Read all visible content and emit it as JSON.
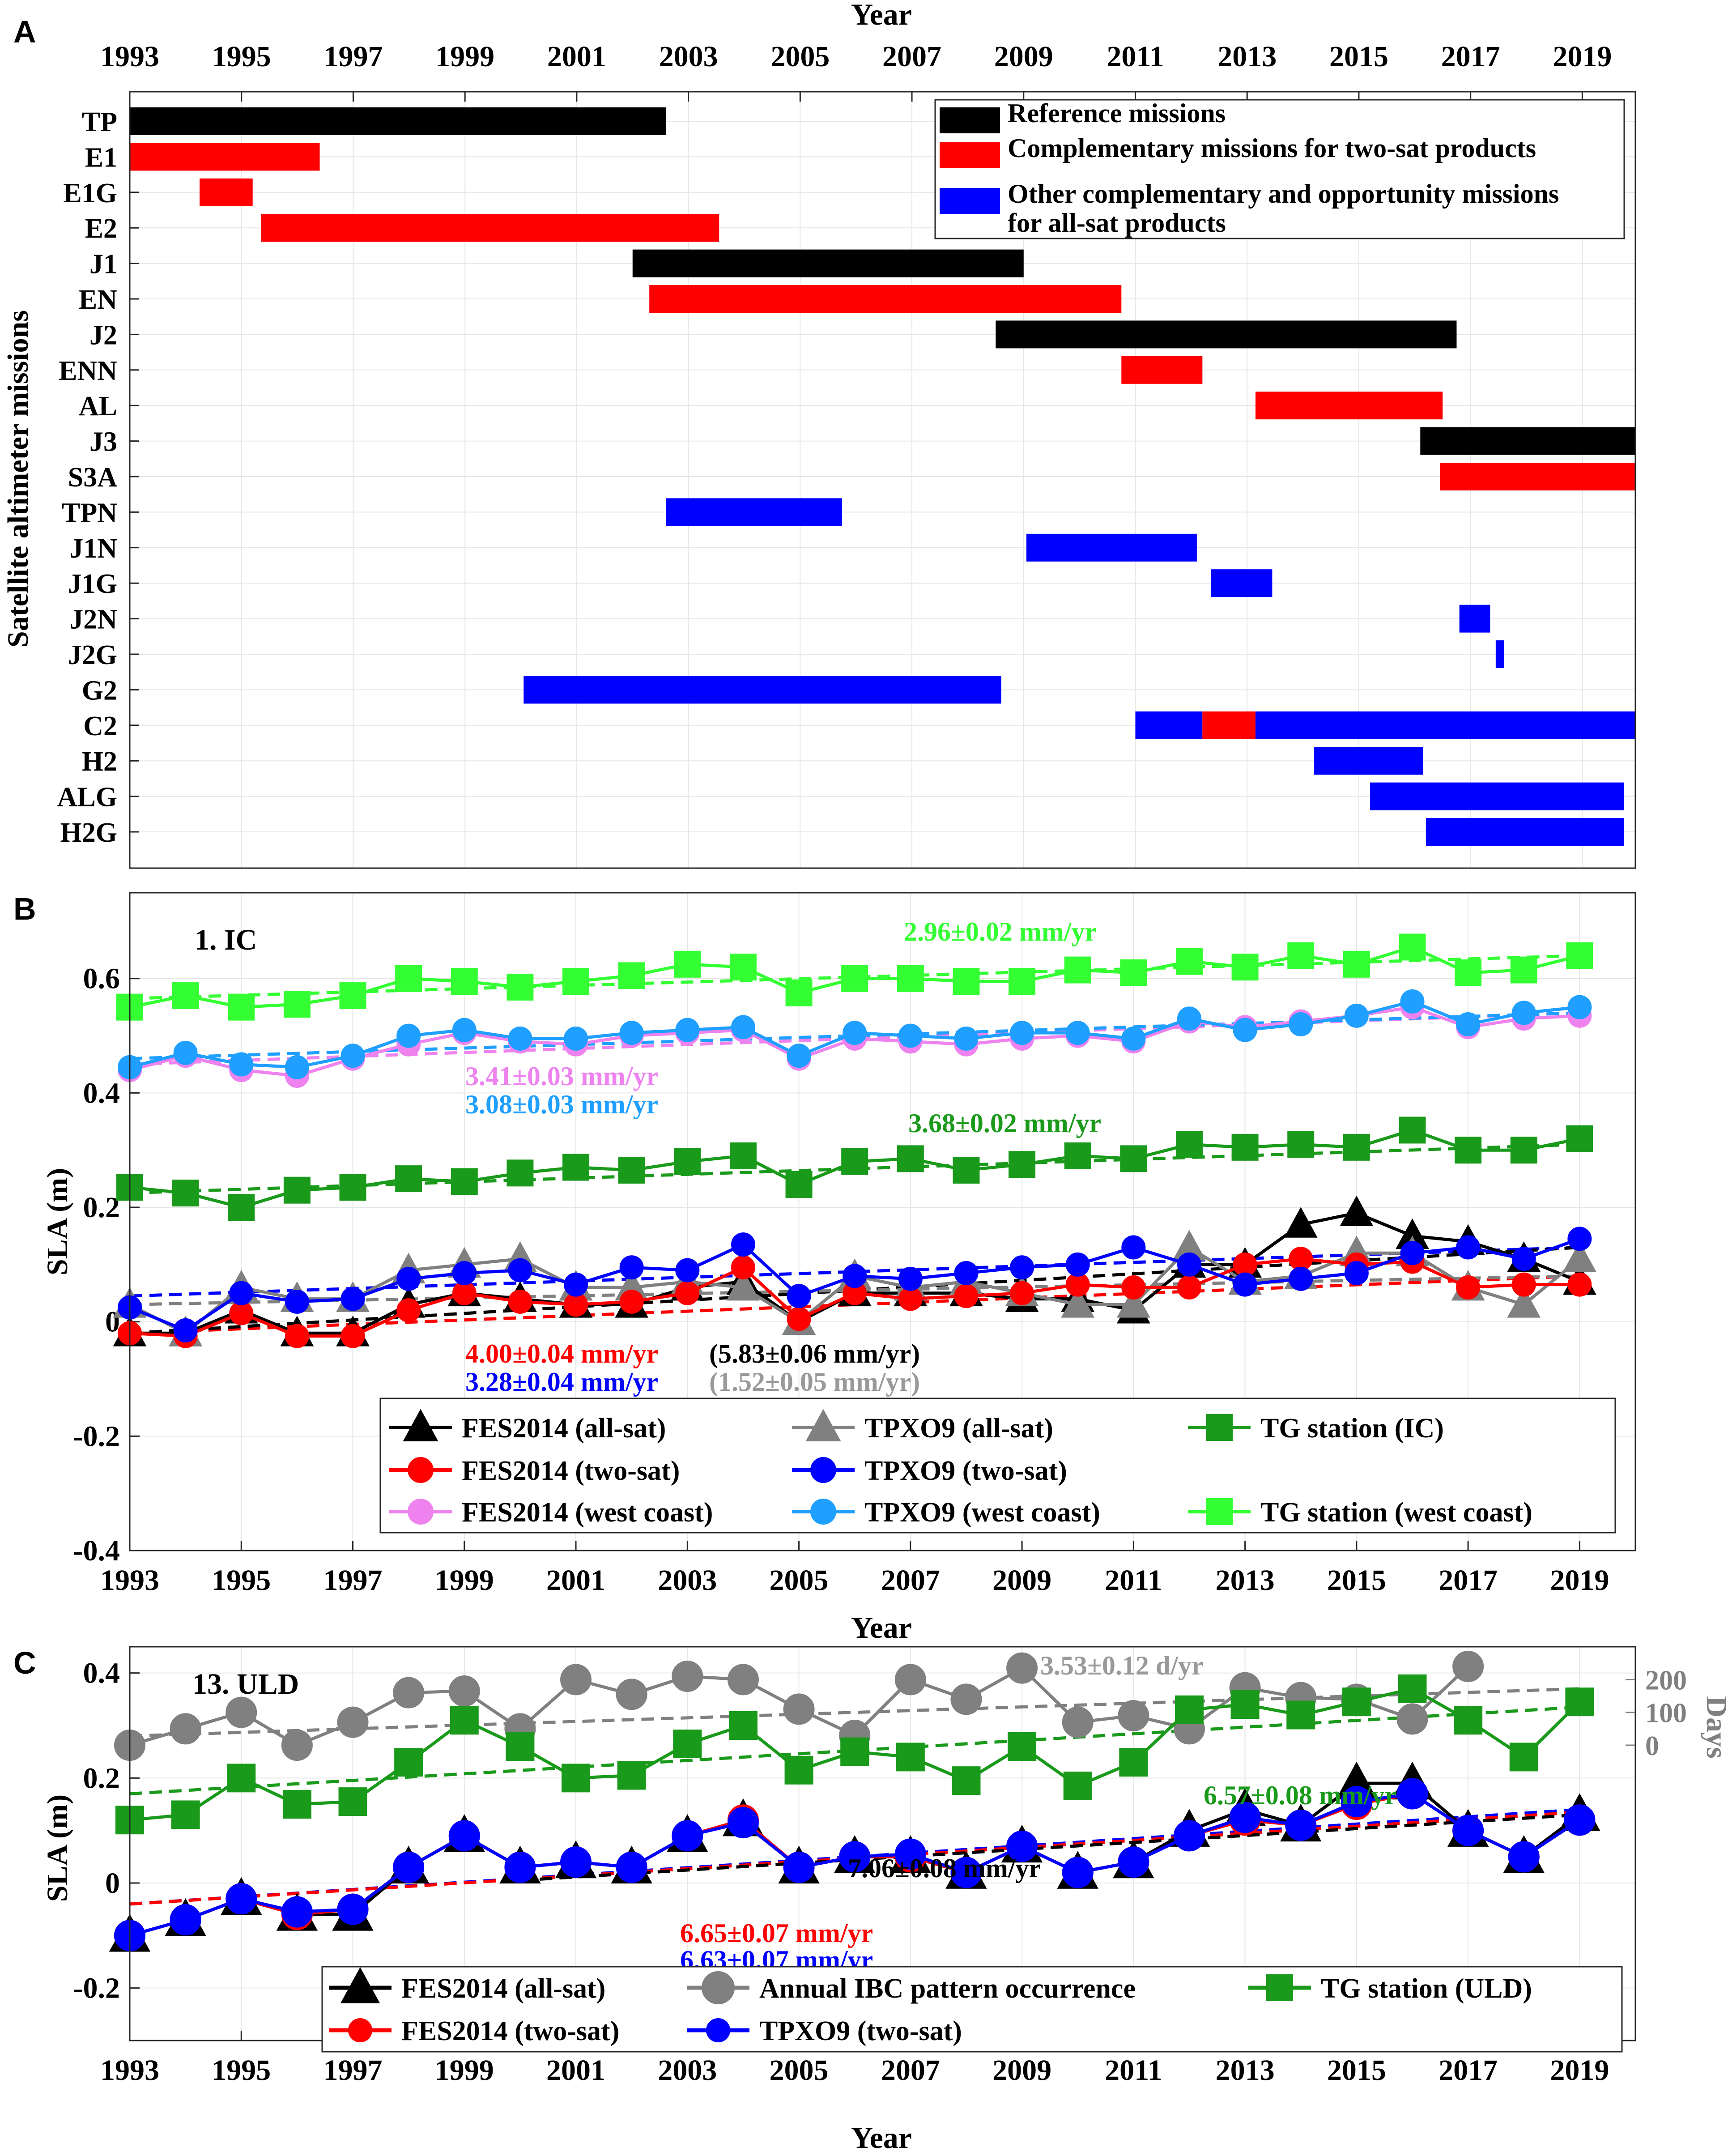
{
  "chart_data": [
    {
      "panel_label": "A",
      "type": "gantt",
      "xlabel": "Year",
      "ylabel": "Satellite altimeter missions",
      "xlim": [
        1993,
        2019.95
      ],
      "xticks": [
        "1993",
        "1995",
        "1997",
        "1999",
        "2001",
        "2003",
        "2005",
        "2007",
        "2009",
        "2011",
        "2013",
        "2015",
        "2017",
        "2019"
      ],
      "missions": [
        {
          "name": "TP",
          "segments": [
            {
              "start": 1993.0,
              "end": 2002.6,
              "cat": "ref"
            }
          ]
        },
        {
          "name": "E1",
          "segments": [
            {
              "start": 1993.0,
              "end": 1996.4,
              "cat": "comp"
            }
          ]
        },
        {
          "name": "E1G",
          "segments": [
            {
              "start": 1994.25,
              "end": 1995.2,
              "cat": "comp"
            }
          ]
        },
        {
          "name": "E2",
          "segments": [
            {
              "start": 1995.35,
              "end": 2003.55,
              "cat": "comp"
            }
          ]
        },
        {
          "name": "J1",
          "segments": [
            {
              "start": 2002.0,
              "end": 2009.0,
              "cat": "ref"
            }
          ]
        },
        {
          "name": "EN",
          "segments": [
            {
              "start": 2002.3,
              "end": 2010.75,
              "cat": "comp"
            }
          ]
        },
        {
          "name": "J2",
          "segments": [
            {
              "start": 2008.5,
              "end": 2016.75,
              "cat": "ref"
            }
          ]
        },
        {
          "name": "ENN",
          "segments": [
            {
              "start": 2010.75,
              "end": 2012.2,
              "cat": "comp"
            }
          ]
        },
        {
          "name": "AL",
          "segments": [
            {
              "start": 2013.15,
              "end": 2016.5,
              "cat": "comp"
            }
          ]
        },
        {
          "name": "J3",
          "segments": [
            {
              "start": 2016.1,
              "end": 2019.95,
              "cat": "ref"
            }
          ]
        },
        {
          "name": "S3A",
          "segments": [
            {
              "start": 2016.45,
              "end": 2019.95,
              "cat": "comp"
            }
          ]
        },
        {
          "name": "TPN",
          "segments": [
            {
              "start": 2002.6,
              "end": 2005.75,
              "cat": "other"
            }
          ]
        },
        {
          "name": "J1N",
          "segments": [
            {
              "start": 2009.05,
              "end": 2012.1,
              "cat": "other"
            }
          ]
        },
        {
          "name": "J1G",
          "segments": [
            {
              "start": 2012.35,
              "end": 2013.45,
              "cat": "other"
            }
          ]
        },
        {
          "name": "J2N",
          "segments": [
            {
              "start": 2016.8,
              "end": 2017.35,
              "cat": "other"
            }
          ]
        },
        {
          "name": "J2G",
          "segments": [
            {
              "start": 2017.45,
              "end": 2017.6,
              "cat": "other"
            }
          ]
        },
        {
          "name": "G2",
          "segments": [
            {
              "start": 2000.05,
              "end": 2008.6,
              "cat": "other"
            }
          ]
        },
        {
          "name": "C2",
          "segments": [
            {
              "start": 2011.0,
              "end": 2012.2,
              "cat": "other"
            },
            {
              "start": 2012.2,
              "end": 2013.15,
              "cat": "comp"
            },
            {
              "start": 2013.15,
              "end": 2019.95,
              "cat": "other"
            }
          ]
        },
        {
          "name": "H2",
          "segments": [
            {
              "start": 2014.2,
              "end": 2016.15,
              "cat": "other"
            }
          ]
        },
        {
          "name": "ALG",
          "segments": [
            {
              "start": 2015.2,
              "end": 2019.75,
              "cat": "other"
            }
          ]
        },
        {
          "name": "H2G",
          "segments": [
            {
              "start": 2016.2,
              "end": 2019.75,
              "cat": "other"
            }
          ]
        }
      ],
      "legend": [
        {
          "cat": "ref",
          "label": "Reference missions",
          "color": "#000000"
        },
        {
          "cat": "comp",
          "label": "Complementary missions for two-sat products",
          "color": "#ff0000"
        },
        {
          "cat": "other",
          "label": "Other complementary and opportunity missions",
          "label2": "for all-sat products",
          "color": "#0000ff"
        }
      ]
    },
    {
      "panel_label": "B",
      "type": "line",
      "title": "1. IC",
      "ylabel": "SLA (m)",
      "xlabel": "Year",
      "xlim": [
        1993,
        2020
      ],
      "ylim": [
        -0.4,
        0.75
      ],
      "yticks": [
        "0.6",
        "0.4",
        "0.2",
        "0",
        "-0.2",
        "-0.4"
      ],
      "xticks": [
        "1993",
        "1995",
        "1997",
        "1999",
        "2001",
        "2003",
        "2005",
        "2007",
        "2009",
        "2011",
        "2013",
        "2015",
        "2017",
        "2019"
      ],
      "x": [
        1993,
        1994,
        1995,
        1996,
        1997,
        1998,
        1999,
        2000,
        2001,
        2002,
        2003,
        2004,
        2005,
        2006,
        2007,
        2008,
        2009,
        2010,
        2011,
        2012,
        2013,
        2014,
        2015,
        2016,
        2017,
        2018,
        2019
      ],
      "series": [
        {
          "name": "FES2014 (all-sat)",
          "color": "#000000",
          "marker": "triangle",
          "values": [
            -0.02,
            -0.02,
            0.02,
            -0.02,
            -0.02,
            0.03,
            0.05,
            0.04,
            0.03,
            0.03,
            0.06,
            0.07,
            0.0,
            0.05,
            0.05,
            0.05,
            0.04,
            0.04,
            0.02,
            0.1,
            0.1,
            0.17,
            0.19,
            0.15,
            0.14,
            0.11,
            0.07
          ]
        },
        {
          "name": "TPXO9 (all-sat)",
          "color": "#808080",
          "marker": "triangle",
          "values": [
            0.03,
            -0.02,
            0.06,
            0.04,
            0.04,
            0.09,
            0.1,
            0.11,
            0.06,
            0.06,
            0.07,
            0.06,
            0.0,
            0.08,
            0.06,
            0.07,
            0.05,
            0.03,
            0.03,
            0.13,
            0.07,
            0.08,
            0.12,
            0.12,
            0.06,
            0.03,
            0.11
          ]
        },
        {
          "name": "TG station (IC)",
          "color": "#1a9a1a",
          "marker": "square",
          "values": [
            0.235,
            0.225,
            0.2,
            0.23,
            0.235,
            0.25,
            0.245,
            0.26,
            0.27,
            0.265,
            0.28,
            0.29,
            0.24,
            0.28,
            0.285,
            0.265,
            0.275,
            0.29,
            0.285,
            0.31,
            0.305,
            0.31,
            0.305,
            0.335,
            0.3,
            0.3,
            0.32
          ]
        },
        {
          "name": "FES2014 (two-sat)",
          "color": "#ff0000",
          "marker": "circle",
          "values": [
            -0.02,
            -0.025,
            0.015,
            -0.025,
            -0.025,
            0.02,
            0.05,
            0.035,
            0.03,
            0.035,
            0.05,
            0.095,
            0.005,
            0.05,
            0.04,
            0.045,
            0.05,
            0.065,
            0.06,
            0.06,
            0.1,
            0.11,
            0.1,
            0.105,
            0.06,
            0.065,
            0.065
          ]
        },
        {
          "name": "TPXO9 (two-sat)",
          "color": "#0000ff",
          "marker": "circle",
          "values": [
            0.025,
            -0.015,
            0.05,
            0.035,
            0.04,
            0.075,
            0.085,
            0.09,
            0.065,
            0.095,
            0.09,
            0.135,
            0.045,
            0.08,
            0.075,
            0.085,
            0.095,
            0.1,
            0.13,
            0.1,
            0.065,
            0.075,
            0.085,
            0.12,
            0.13,
            0.11,
            0.145
          ]
        },
        {
          "name": "FES2014 (west coast)",
          "color": "#ee82ee",
          "marker": "circle",
          "values": [
            0.44,
            0.465,
            0.44,
            0.43,
            0.46,
            0.485,
            0.505,
            0.49,
            0.485,
            0.5,
            0.505,
            0.51,
            0.46,
            0.495,
            0.49,
            0.485,
            0.495,
            0.5,
            0.49,
            0.525,
            0.515,
            0.525,
            0.535,
            0.55,
            0.515,
            0.53,
            0.535
          ]
        },
        {
          "name": "TPXO9 (west coast)",
          "color": "#1f9fff",
          "marker": "circle",
          "values": [
            0.445,
            0.47,
            0.45,
            0.445,
            0.465,
            0.5,
            0.51,
            0.495,
            0.495,
            0.505,
            0.51,
            0.515,
            0.465,
            0.505,
            0.5,
            0.495,
            0.505,
            0.505,
            0.495,
            0.53,
            0.51,
            0.52,
            0.535,
            0.56,
            0.52,
            0.54,
            0.55
          ]
        },
        {
          "name": "TG station (west coast)",
          "color": "#33ff33",
          "marker": "square",
          "values": [
            0.55,
            0.57,
            0.55,
            0.555,
            0.57,
            0.6,
            0.595,
            0.585,
            0.595,
            0.605,
            0.625,
            0.62,
            0.575,
            0.6,
            0.6,
            0.595,
            0.595,
            0.615,
            0.61,
            0.63,
            0.62,
            0.64,
            0.625,
            0.655,
            0.61,
            0.615,
            0.64
          ]
        }
      ],
      "trends": [
        {
          "color": "#ff0000",
          "from": [
            1993,
            -0.02
          ],
          "to": [
            2019,
            0.08
          ]
        },
        {
          "color": "#0000ff",
          "from": [
            1993,
            0.045
          ],
          "to": [
            2019,
            0.13
          ]
        },
        {
          "color": "#000000",
          "from": [
            1993,
            -0.02
          ],
          "to": [
            2019,
            0.13
          ]
        },
        {
          "color": "#808080",
          "from": [
            1993,
            0.03
          ],
          "to": [
            2019,
            0.08
          ]
        },
        {
          "color": "#1a9a1a",
          "from": [
            1993,
            0.225
          ],
          "to": [
            2019,
            0.31
          ]
        },
        {
          "color": "#ee82ee",
          "from": [
            1993,
            0.45
          ],
          "to": [
            2019,
            0.54
          ]
        },
        {
          "color": "#1f9fff",
          "from": [
            1993,
            0.46
          ],
          "to": [
            2019,
            0.54
          ]
        },
        {
          "color": "#33ff33",
          "from": [
            1993,
            0.565
          ],
          "to": [
            2019,
            0.64
          ]
        }
      ],
      "annotations": {
        "tg_west_rate": "2.96±0.02 mm/yr",
        "fes_west_rate": "3.41±0.03 mm/yr",
        "tpxo_west_rate": "3.08±0.03 mm/yr",
        "tg_ic_rate": "3.68±0.02 mm/yr",
        "fes_two_rate": "4.00±0.04 mm/yr",
        "fes_all_rate": "(5.83±0.06 mm/yr)",
        "tpxo_two_rate": "3.28±0.04 mm/yr",
        "tpxo_all_rate": "(1.52±0.05 mm/yr)"
      },
      "legend": [
        "FES2014 (all-sat)",
        "TPXO9 (all-sat)",
        "TG station (IC)",
        "FES2014 (two-sat)",
        "TPXO9 (two-sat)",
        "FES2014 (west coast)",
        "TPXO9 (west coast)",
        "TG station (west coast)"
      ]
    },
    {
      "panel_label": "C",
      "type": "line",
      "title": "13. ULD",
      "ylabel": "SLA (m)",
      "y2label": "Days",
      "xlabel": "Year",
      "xlim": [
        1993,
        2020
      ],
      "ylim": [
        -0.3,
        0.45
      ],
      "yticks": [
        "0.4",
        "0.2",
        "0",
        "-0.2"
      ],
      "y2ticks": [
        "200",
        "100",
        "0"
      ],
      "y2_map": {
        "day0_sla": 0.2625,
        "sla_per_day": 0.000625
      },
      "xticks": [
        "1993",
        "1995",
        "1997",
        "1999",
        "2001",
        "2003",
        "2005",
        "2007",
        "2009",
        "2011",
        "2013",
        "2015",
        "2017",
        "2019"
      ],
      "x": [
        1993,
        1994,
        1995,
        1996,
        1997,
        1998,
        1999,
        2000,
        2001,
        2002,
        2003,
        2004,
        2005,
        2006,
        2007,
        2008,
        2009,
        2010,
        2011,
        2012,
        2013,
        2014,
        2015,
        2016,
        2017,
        2018,
        2019
      ],
      "series": [
        {
          "name": "FES2014 (all-sat)",
          "color": "#000000",
          "marker": "triangle",
          "axis": "left",
          "values": [
            -0.1,
            -0.07,
            -0.03,
            -0.06,
            -0.06,
            0.03,
            0.09,
            0.03,
            0.04,
            0.03,
            0.09,
            0.12,
            0.03,
            0.05,
            0.05,
            0.02,
            0.07,
            0.02,
            0.04,
            0.1,
            0.14,
            0.11,
            0.19,
            0.19,
            0.1,
            0.05,
            0.13
          ]
        },
        {
          "name": "Annual IBC pattern occurrence",
          "color": "#808080",
          "marker": "circle",
          "axis": "right",
          "values": [
            0,
            50,
            100,
            0,
            70,
            160,
            165,
            50,
            200,
            155,
            210,
            200,
            110,
            30,
            200,
            140,
            235,
            70,
            90,
            50,
            175,
            145,
            140,
            80,
            240,
            null,
            null
          ]
        },
        {
          "name": "TG station (ULD)",
          "color": "#1a9a1a",
          "marker": "square",
          "axis": "left",
          "values": [
            0.12,
            0.13,
            0.2,
            0.15,
            0.155,
            0.23,
            0.31,
            0.26,
            0.2,
            0.205,
            0.265,
            0.3,
            0.215,
            0.25,
            0.24,
            0.195,
            0.26,
            0.185,
            0.23,
            0.33,
            0.34,
            0.32,
            0.345,
            0.37,
            0.31,
            0.24,
            0.345
          ]
        },
        {
          "name": "FES2014 (two-sat)",
          "color": "#ff0000",
          "marker": "circle",
          "axis": "left",
          "values": [
            -0.1,
            -0.07,
            -0.03,
            -0.06,
            -0.05,
            0.03,
            0.09,
            0.03,
            0.04,
            0.03,
            0.09,
            0.12,
            0.03,
            0.05,
            0.05,
            0.02,
            0.07,
            0.02,
            0.04,
            0.09,
            0.12,
            0.11,
            0.15,
            0.17,
            0.1,
            0.05,
            0.12
          ]
        },
        {
          "name": "TPXO9 (two-sat)",
          "color": "#0000ff",
          "marker": "circle",
          "axis": "left",
          "values": [
            -0.1,
            -0.07,
            -0.03,
            -0.055,
            -0.05,
            0.03,
            0.09,
            0.03,
            0.04,
            0.03,
            0.09,
            0.115,
            0.03,
            0.05,
            0.055,
            0.02,
            0.07,
            0.02,
            0.04,
            0.09,
            0.125,
            0.11,
            0.155,
            0.17,
            0.1,
            0.05,
            0.12
          ]
        }
      ],
      "trends": [
        {
          "color": "#0000ff",
          "from": [
            1993,
            -0.04
          ],
          "to": [
            2019,
            0.14
          ]
        },
        {
          "color": "#ff0000",
          "from": [
            1993,
            -0.04
          ],
          "to": [
            2019,
            0.135
          ]
        },
        {
          "color": "#000000",
          "from": [
            2000,
            0.005
          ],
          "to": [
            2019,
            0.13
          ]
        },
        {
          "color": "#1a9a1a",
          "from": [
            1993,
            0.17
          ],
          "to": [
            2019,
            0.335
          ]
        },
        {
          "color": "#808080",
          "from": [
            1993,
            0.28
          ],
          "to": [
            2019,
            0.37
          ]
        }
      ],
      "annotations": {
        "ibc_rate": "3.53±0.12 d/yr",
        "tg_rate": "6.57±0.08 mm/yr",
        "fes_all_rate": "7.06±0.08 mm/yr",
        "fes_two_rate": "6.65±0.07 mm/yr",
        "tpxo_two_rate": "6.63±0.07 mm/yr"
      },
      "legend": [
        "FES2014 (all-sat)",
        "Annual IBC pattern occurrence",
        "TG station (ULD)",
        "FES2014 (two-sat)",
        "TPXO9 (two-sat)"
      ]
    }
  ]
}
